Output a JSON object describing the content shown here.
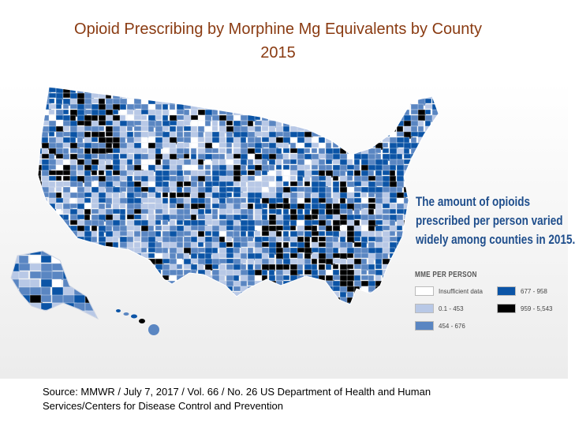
{
  "title": {
    "line1": "Opioid Prescribing by Morphine Mg Equivalents by County",
    "line2": "2015"
  },
  "callout": {
    "line1": "The amount of opioids",
    "line2": "prescribed per person varied",
    "line3": "widely among counties in 2015."
  },
  "legend": {
    "title": "MME PER PERSON",
    "items": [
      {
        "label": "Insufficient data",
        "color": "#ffffff"
      },
      {
        "label": "0.1 - 453",
        "color": "#b8c8e6"
      },
      {
        "label": "454 - 676",
        "color": "#5a86c2"
      },
      {
        "label": "677 - 958",
        "color": "#0b54a6"
      },
      {
        "label": "959 - 5,543",
        "color": "#000000"
      }
    ]
  },
  "source": {
    "line1": "Source: MMWR / July 7, 2017 / Vol. 66 / No. 26 US Department of Health and Human",
    "line2": "Services/Centers for Disease Control and Prevention"
  }
}
